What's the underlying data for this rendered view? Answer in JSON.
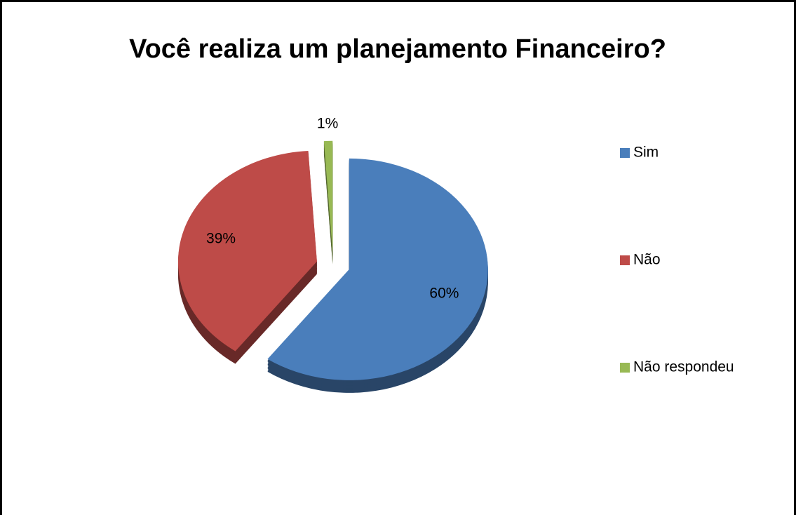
{
  "chart_data": {
    "type": "pie",
    "title": "Você realiza um planejamento Financeiro?",
    "categories": [
      "Sim",
      "Não",
      "Não respondeu"
    ],
    "values": [
      60,
      39,
      1
    ],
    "value_labels": [
      "60%",
      "39%",
      "1%"
    ],
    "colors": [
      "#4a7ebb",
      "#be4b48",
      "#98b954"
    ],
    "legend": "right"
  }
}
